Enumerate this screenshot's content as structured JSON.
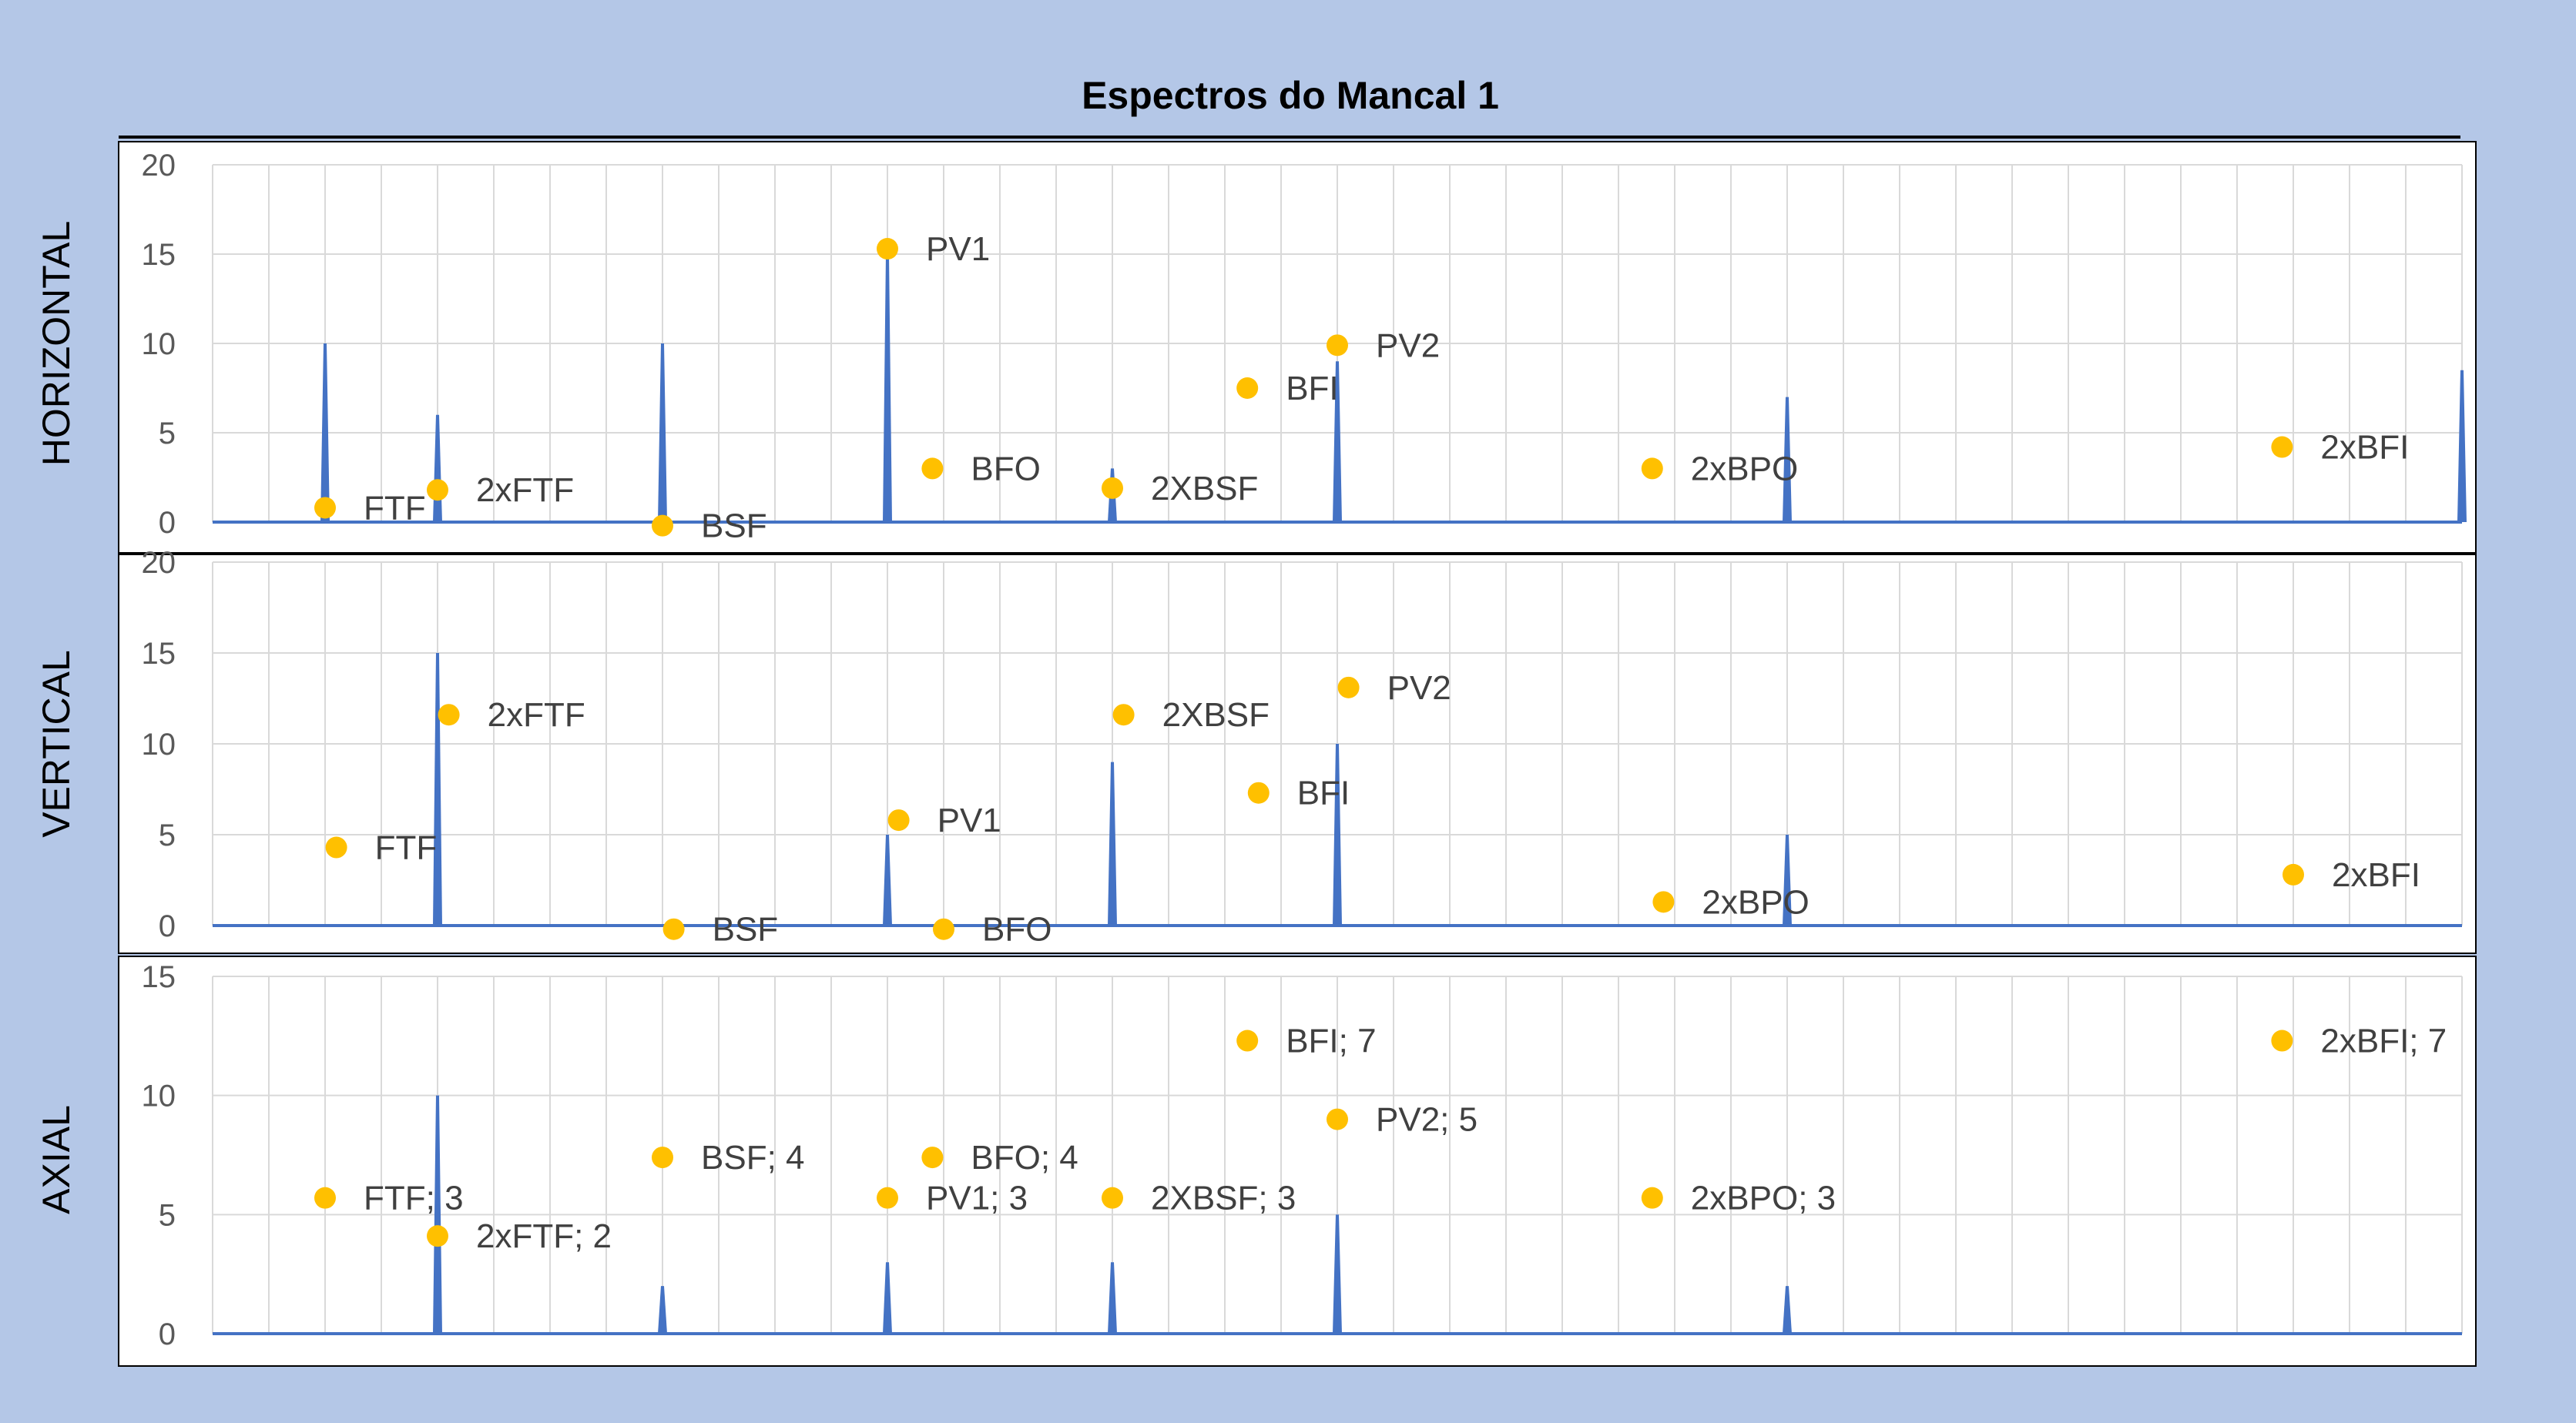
{
  "chart_data": {
    "type": "line",
    "title": "Espectros do Mancal 1",
    "colors": {
      "background": "#b4c7e7",
      "plot_background": "#ffffff",
      "spectrum_line": "#4472c4",
      "marker": "#ffc000",
      "gridline": "#d9d9d9"
    },
    "x_range": [
      0,
      40
    ],
    "vertical_gridlines": true,
    "panels": [
      {
        "id": "horizontal",
        "ylabel": "HORIZONTAL",
        "ylim": [
          0,
          20
        ],
        "yticks": [
          "0",
          "5",
          "10",
          "15",
          "20"
        ],
        "spectrum": [
          {
            "x": 2,
            "y": 10
          },
          {
            "x": 4,
            "y": 6
          },
          {
            "x": 8,
            "y": 10
          },
          {
            "x": 12,
            "y": 15
          },
          {
            "x": 16,
            "y": 3
          },
          {
            "x": 20,
            "y": 9
          },
          {
            "x": 28,
            "y": 7
          },
          {
            "x": 40,
            "y": 8.5
          }
        ],
        "markers": [
          {
            "x": 2,
            "y": 0.8,
            "label": "FTF"
          },
          {
            "x": 4,
            "y": 1.8,
            "label": "2xFTF"
          },
          {
            "x": 8,
            "y": -0.2,
            "label": "BSF"
          },
          {
            "x": 12,
            "y": 15.3,
            "label": "PV1"
          },
          {
            "x": 12.8,
            "y": 3,
            "label": "BFO"
          },
          {
            "x": 16,
            "y": 1.9,
            "label": "2XBSF"
          },
          {
            "x": 18.4,
            "y": 7.5,
            "label": "BFI"
          },
          {
            "x": 20,
            "y": 9.9,
            "label": "PV2"
          },
          {
            "x": 25.6,
            "y": 3,
            "label": "2xBPO"
          },
          {
            "x": 36.8,
            "y": 4.2,
            "label": "2xBFI"
          }
        ]
      },
      {
        "id": "vertical",
        "ylabel": "VERTICAL",
        "ylim": [
          0,
          20
        ],
        "yticks": [
          "0",
          "5",
          "10",
          "15",
          "20"
        ],
        "spectrum": [
          {
            "x": 4,
            "y": 15
          },
          {
            "x": 12,
            "y": 5
          },
          {
            "x": 16,
            "y": 9
          },
          {
            "x": 20,
            "y": 10
          },
          {
            "x": 28,
            "y": 5
          }
        ],
        "markers": [
          {
            "x": 2.2,
            "y": 4.3,
            "label": "FTF"
          },
          {
            "x": 4.2,
            "y": 11.6,
            "label": "2xFTF"
          },
          {
            "x": 8.2,
            "y": -0.2,
            "label": "BSF"
          },
          {
            "x": 12.2,
            "y": 5.8,
            "label": "PV1"
          },
          {
            "x": 13,
            "y": -0.2,
            "label": "BFO"
          },
          {
            "x": 16.2,
            "y": 11.6,
            "label": "2XBSF"
          },
          {
            "x": 18.6,
            "y": 7.3,
            "label": "BFI"
          },
          {
            "x": 20.2,
            "y": 13.1,
            "label": "PV2"
          },
          {
            "x": 25.8,
            "y": 1.3,
            "label": "2xBPO"
          },
          {
            "x": 37,
            "y": 2.8,
            "label": "2xBFI"
          }
        ]
      },
      {
        "id": "axial",
        "ylabel": "AXIAL",
        "ylim": [
          0,
          15
        ],
        "yticks": [
          "0",
          "5",
          "10",
          "15"
        ],
        "spectrum": [
          {
            "x": 4,
            "y": 10
          },
          {
            "x": 8,
            "y": 2
          },
          {
            "x": 12,
            "y": 3
          },
          {
            "x": 16,
            "y": 3
          },
          {
            "x": 20,
            "y": 5
          },
          {
            "x": 28,
            "y": 2
          }
        ],
        "markers": [
          {
            "x": 2,
            "y": 5.7,
            "label": "FTF; 3"
          },
          {
            "x": 4,
            "y": 4.1,
            "label": "2xFTF; 2"
          },
          {
            "x": 8,
            "y": 7.4,
            "label": "BSF; 4"
          },
          {
            "x": 12,
            "y": 5.7,
            "label": "PV1; 3"
          },
          {
            "x": 12.8,
            "y": 7.4,
            "label": "BFO; 4"
          },
          {
            "x": 16,
            "y": 5.7,
            "label": "2XBSF; 3"
          },
          {
            "x": 18.4,
            "y": 12.3,
            "label": "BFI; 7"
          },
          {
            "x": 20,
            "y": 9.0,
            "label": "PV2; 5"
          },
          {
            "x": 25.6,
            "y": 5.7,
            "label": "2xBPO; 3"
          },
          {
            "x": 36.8,
            "y": 12.3,
            "label": "2xBFI; 7"
          }
        ]
      }
    ]
  }
}
